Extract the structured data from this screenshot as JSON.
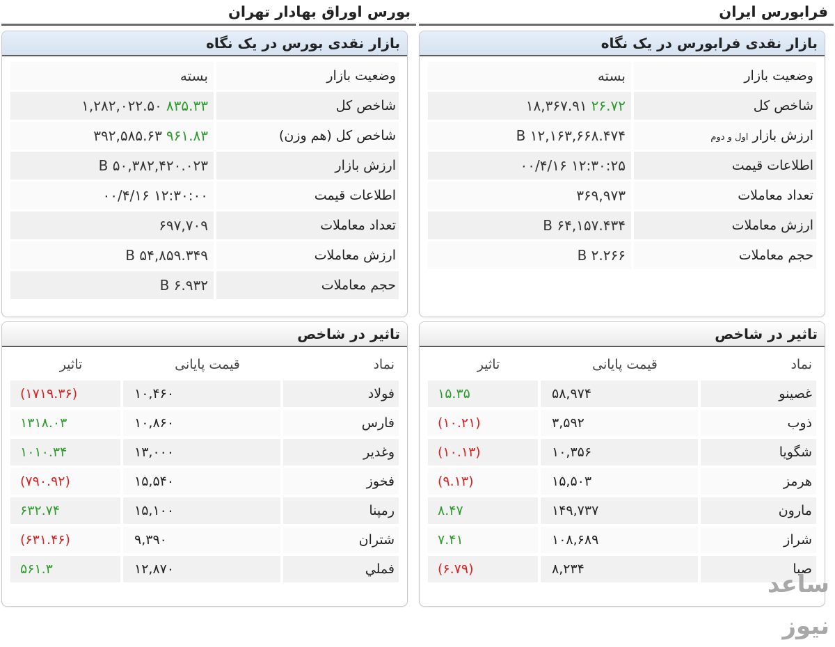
{
  "left": {
    "title": "بورس اوراق بهادار تهران",
    "glance": {
      "heading": "بازار نقدی بورس در یک نگاه",
      "rows": [
        {
          "label": "وضعیت بازار",
          "value": "بسته",
          "change": ""
        },
        {
          "label": "شاخص کل",
          "value": "۱,۲۸۲,۰۲۲.۵۰",
          "change": "۸۳۵.۳۳"
        },
        {
          "label": "شاخص کل (هم وزن)",
          "value": "۳۹۲,۵۸۵.۶۳",
          "change": "۹۶۱.۸۳"
        },
        {
          "label": "ارزش بازار",
          "value": "۵۰,۳۸۲,۴۲۰.۰۲۳ B",
          "change": ""
        },
        {
          "label": "اطلاعات قیمت",
          "value": "۱۲:۳۰:۰۰ ۰۰/۴/۱۶",
          "change": ""
        },
        {
          "label": "تعداد معاملات",
          "value": "۶۹۷,۷۰۹",
          "change": ""
        },
        {
          "label": "ارزش معاملات",
          "value": "۵۴,۸۵۹.۳۴۹ B",
          "change": ""
        },
        {
          "label": "حجم معاملات",
          "value": "۶.۹۳۲ B",
          "change": ""
        }
      ]
    },
    "impact": {
      "heading": "تاثیر در شاخص",
      "columns": {
        "symbol": "نماد",
        "price": "قیمت پایانی",
        "impact": "تاثیر"
      },
      "rows": [
        {
          "symbol": "فولاد",
          "price": "۱۰,۴۶۰",
          "impact": "(۱۷۱۹.۳۶)",
          "sign": "neg"
        },
        {
          "symbol": "فارس",
          "price": "۱۰,۸۶۰",
          "impact": "۱۳۱۸.۰۳",
          "sign": "pos"
        },
        {
          "symbol": "وغدیر",
          "price": "۱۳,۰۰۰",
          "impact": "۱۰۱۰.۳۴",
          "sign": "pos"
        },
        {
          "symbol": "فخوز",
          "price": "۱۵,۵۴۰",
          "impact": "(۷۹۰.۹۲)",
          "sign": "neg"
        },
        {
          "symbol": "رمپنا",
          "price": "۱۵,۱۰۰",
          "impact": "۶۳۲.۷۴",
          "sign": "pos"
        },
        {
          "symbol": "شتران",
          "price": "۹,۳۹۰",
          "impact": "(۶۳۱.۴۶)",
          "sign": "neg"
        },
        {
          "symbol": "فملي",
          "price": "۱۲,۸۷۰",
          "impact": "۵۶۱.۳",
          "sign": "pos"
        }
      ]
    }
  },
  "right": {
    "title": "فرابورس ایران",
    "glance": {
      "heading": "بازار نقدی فرابورس در یک نگاه",
      "rows": [
        {
          "label": "وضعیت بازار",
          "label_small": "",
          "value": "بسته",
          "change": ""
        },
        {
          "label": "شاخص کل",
          "label_small": "",
          "value": "۱۸,۳۶۷.۹۱",
          "change": "۲۶.۷۲"
        },
        {
          "label": "ارزش بازار",
          "label_small": "اول و دوم",
          "value": "۱۲,۱۶۳,۶۶۸.۴۷۴ B",
          "change": ""
        },
        {
          "label": "اطلاعات قیمت",
          "label_small": "",
          "value": "۱۲:۳۰:۲۵ ۰۰/۴/۱۶",
          "change": ""
        },
        {
          "label": "تعداد معاملات",
          "label_small": "",
          "value": "۳۶۹,۹۷۳",
          "change": ""
        },
        {
          "label": "ارزش معاملات",
          "label_small": "",
          "value": "۶۴,۱۵۷.۴۳۴ B",
          "change": ""
        },
        {
          "label": "حجم معاملات",
          "label_small": "",
          "value": "۲.۲۶۶ B",
          "change": ""
        }
      ]
    },
    "impact": {
      "heading": "تاثیر در شاخص",
      "columns": {
        "symbol": "نماد",
        "price": "قیمت پایانی",
        "impact": "تاثیر"
      },
      "rows": [
        {
          "symbol": "غصینو",
          "price": "۵۸,۹۷۴",
          "impact": "۱۵.۳۵",
          "sign": "pos"
        },
        {
          "symbol": "ذوب",
          "price": "۳,۵۹۲",
          "impact": "(۱۰.۲۱)",
          "sign": "neg"
        },
        {
          "symbol": "شگویا",
          "price": "۱۰,۳۵۶",
          "impact": "(۱۰.۱۳)",
          "sign": "neg"
        },
        {
          "symbol": "هرمز",
          "price": "۱۵,۵۰۳",
          "impact": "(۹.۱۳)",
          "sign": "neg"
        },
        {
          "symbol": "مارون",
          "price": "۱۴۹,۷۳۷",
          "impact": "۸.۴۷",
          "sign": "pos"
        },
        {
          "symbol": "شراز",
          "price": "۱۰۸,۶۸۹",
          "impact": "۷.۴۱",
          "sign": "pos"
        },
        {
          "symbol": "صبا",
          "price": "۸,۲۳۴",
          "impact": "(۶.۷۹)",
          "sign": "neg"
        }
      ]
    }
  },
  "colors": {
    "positive": "#2c9a2c",
    "negative": "#d62222",
    "header_blue": "#d6e2f1"
  },
  "watermark": "ساعد نیوز"
}
